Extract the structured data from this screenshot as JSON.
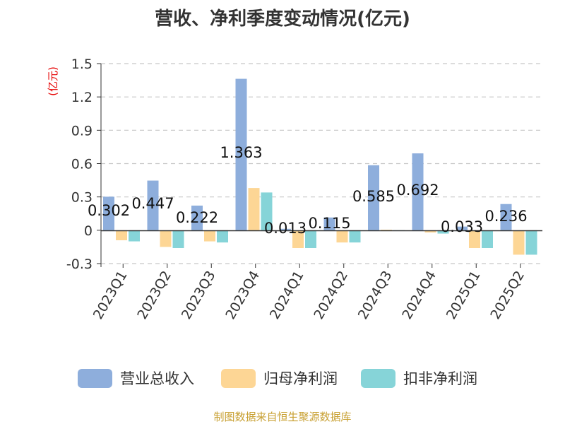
{
  "chart_data": {
    "type": "bar",
    "title": "营收、净利季度变动情况(亿元)",
    "unit_label": "(亿元)",
    "categories": [
      "2023Q1",
      "2023Q2",
      "2023Q3",
      "2023Q4",
      "2024Q1",
      "2024Q2",
      "2024Q3",
      "2024Q4",
      "2025Q1",
      "2025Q2"
    ],
    "series": [
      {
        "name": "营业总收入",
        "color": "#8eaedc",
        "values": [
          0.302,
          0.447,
          0.222,
          1.363,
          0.013,
          0.115,
          0.585,
          0.692,
          0.033,
          0.236
        ]
      },
      {
        "name": "归母净利润",
        "color": "#fdd695",
        "values": [
          -0.09,
          -0.15,
          -0.1,
          0.38,
          -0.16,
          -0.11,
          0.005,
          -0.02,
          -0.16,
          -0.22
        ]
      },
      {
        "name": "扣非净利润",
        "color": "#86d4d8",
        "values": [
          -0.1,
          -0.16,
          -0.11,
          0.34,
          -0.16,
          -0.11,
          0.0,
          -0.03,
          -0.16,
          -0.22
        ]
      }
    ],
    "data_labels": [
      "0.302",
      "0.447",
      "0.222",
      "1.363",
      "0.013",
      "0.115",
      "0.585",
      "0.692",
      "0.033",
      "0.236"
    ],
    "yticks": [
      "1.5",
      "1.2",
      "0.9",
      "0.6",
      "0.3",
      "0",
      "-0.3"
    ],
    "ylim": [
      -0.3,
      1.5
    ],
    "grid": true,
    "legend_position": "bottom",
    "source": "制图数据来自恒生聚源数据库"
  }
}
